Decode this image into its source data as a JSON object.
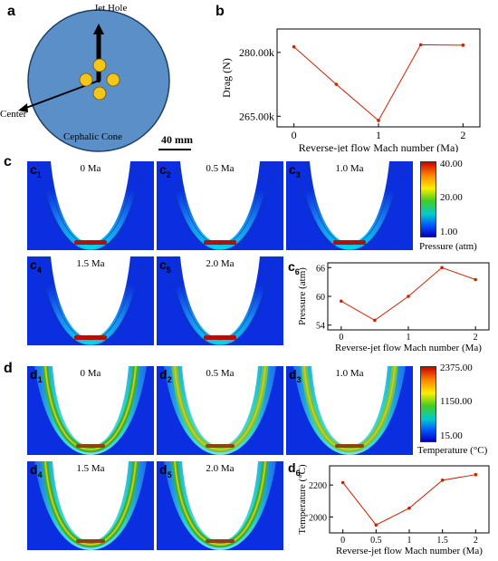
{
  "panel_a": {
    "label": "a",
    "jet_hole": "Jet Hole",
    "center": "Center",
    "cephalic_cone": "Cephalic Cone",
    "scale_bar": "40 mm",
    "colors": {
      "disk": "#5b8fc8",
      "disk_edge": "#1e3f66",
      "holes": "#f5c518"
    }
  },
  "panel_c": {
    "label": "c",
    "colorbar": {
      "max": "40.00",
      "mid": "20.00",
      "min": "1.00",
      "title": "Pressure (atm)"
    },
    "subpanels": [
      {
        "tag": "c",
        "num": "1",
        "mach": "0 Ma"
      },
      {
        "tag": "c",
        "num": "2",
        "mach": "0.5 Ma"
      },
      {
        "tag": "c",
        "num": "3",
        "mach": "1.0 Ma"
      },
      {
        "tag": "c",
        "num": "4",
        "mach": "1.5 Ma"
      },
      {
        "tag": "c",
        "num": "5",
        "mach": "2.0 Ma"
      }
    ],
    "chart_tag": {
      "tag": "c",
      "num": "6"
    }
  },
  "panel_d": {
    "label": "d",
    "colorbar": {
      "max": "2375.00",
      "mid": "1150.00",
      "min": "15.00",
      "title": "Temperature (°C)"
    },
    "subpanels": [
      {
        "tag": "d",
        "num": "1",
        "mach": "0 Ma"
      },
      {
        "tag": "d",
        "num": "2",
        "mach": "0.5 Ma"
      },
      {
        "tag": "d",
        "num": "3",
        "mach": "1.0 Ma"
      },
      {
        "tag": "d",
        "num": "4",
        "mach": "1.5 Ma"
      },
      {
        "tag": "d",
        "num": "5",
        "mach": "2.0 Ma"
      }
    ],
    "chart_tag": {
      "tag": "d",
      "num": "6"
    }
  },
  "chart_data": [
    {
      "id": "b",
      "label": "b",
      "type": "line",
      "x": [
        0,
        0.5,
        1,
        1.5,
        2
      ],
      "y": [
        281300,
        272500,
        264000,
        281800,
        281700
      ],
      "xticks": [
        "0",
        "1",
        "2"
      ],
      "xtick_values": [
        0,
        1,
        2
      ],
      "yticks": [
        "265.00k",
        "280.00k"
      ],
      "ytick_values": [
        265000,
        280000
      ],
      "xlabel": "Reverse-jet flow Mach number (Ma)",
      "ylabel": "Drag (N)",
      "xlim": [
        -0.2,
        2.2
      ],
      "ylim": [
        262500,
        285500
      ],
      "color": "#cc2200"
    },
    {
      "id": "c6",
      "type": "line",
      "x": [
        0,
        0.5,
        1,
        1.5,
        2
      ],
      "y": [
        59.0,
        55.0,
        60.0,
        66.0,
        63.5
      ],
      "xticks": [
        "0",
        "1",
        "2"
      ],
      "xtick_values": [
        0,
        1,
        2
      ],
      "yticks": [
        "54",
        "60",
        "66"
      ],
      "ytick_values": [
        54,
        60,
        66
      ],
      "xlabel": "Reverse-jet flow Mach number (Ma)",
      "ylabel": "Pressure (atm)",
      "xlim": [
        -0.2,
        2.2
      ],
      "ylim": [
        53,
        67
      ],
      "color": "#cc2200"
    },
    {
      "id": "d6",
      "type": "line",
      "x": [
        0,
        0.5,
        1,
        1.5,
        2
      ],
      "y": [
        2215,
        1950,
        2055,
        2230,
        2265
      ],
      "xticks": [
        "0",
        "0.5",
        "1",
        "1.5",
        "2"
      ],
      "xtick_values": [
        0,
        0.5,
        1,
        1.5,
        2
      ],
      "yticks": [
        "2000",
        "2200"
      ],
      "ytick_values": [
        2000,
        2200
      ],
      "xlabel": "Reverse-jet flow Mach number (Ma)",
      "ylabel": "Temperature (°C)",
      "xlim": [
        -0.2,
        2.2
      ],
      "ylim": [
        1900,
        2320
      ],
      "color": "#cc2200"
    }
  ]
}
